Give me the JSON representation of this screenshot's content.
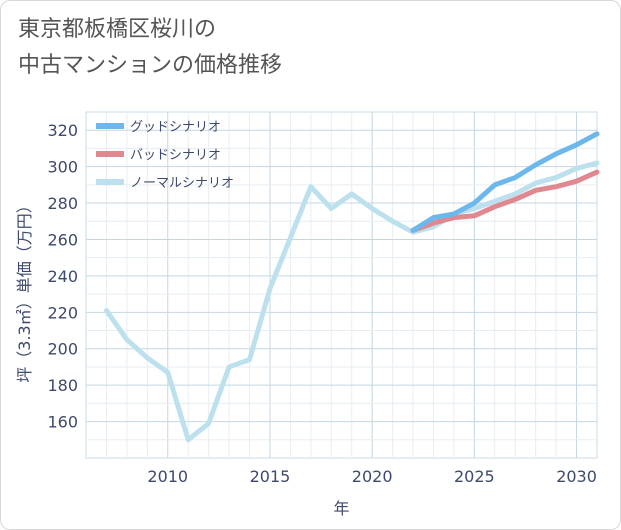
{
  "title": {
    "line1": "東京都板橋区桜川の",
    "line2": "中古マンションの価格推移"
  },
  "chart_data": {
    "type": "line",
    "xlabel": "年",
    "ylabel": "坪（3.3㎡）単価（万円）",
    "xlim": [
      2006,
      2031
    ],
    "ylim": [
      140,
      330
    ],
    "x_ticks": [
      2010,
      2015,
      2020,
      2025,
      2030
    ],
    "y_ticks": [
      160,
      180,
      200,
      220,
      240,
      260,
      280,
      300,
      320
    ],
    "grid": true,
    "legend_position": "top-left",
    "series": [
      {
        "name": "グッドシナリオ",
        "color": "#6cb8ec",
        "x": [
          2022,
          2023,
          2024,
          2025,
          2026,
          2027,
          2028,
          2029,
          2030,
          2031
        ],
        "values": [
          265,
          272,
          274,
          280,
          290,
          294,
          301,
          307,
          312,
          318
        ]
      },
      {
        "name": "バッドシナリオ",
        "color": "#e0888f",
        "x": [
          2022,
          2023,
          2024,
          2025,
          2026,
          2027,
          2028,
          2029,
          2030,
          2031
        ],
        "values": [
          265,
          269,
          272,
          273,
          278,
          282,
          287,
          289,
          292,
          297
        ]
      },
      {
        "name": "ノーマルシナリオ",
        "color": "#bde0ee",
        "x": [
          2007,
          2008,
          2009,
          2010,
          2011,
          2012,
          2013,
          2014,
          2015,
          2016,
          2017,
          2018,
          2019,
          2020,
          2021,
          2022,
          2023,
          2024,
          2025,
          2026,
          2027,
          2028,
          2029,
          2030,
          2031
        ],
        "values": [
          221,
          205,
          195,
          187,
          150,
          159,
          190,
          194,
          233,
          261,
          289,
          277,
          285,
          277,
          270,
          264,
          267,
          274,
          277,
          281,
          285,
          291,
          294,
          299,
          302
        ]
      }
    ]
  }
}
